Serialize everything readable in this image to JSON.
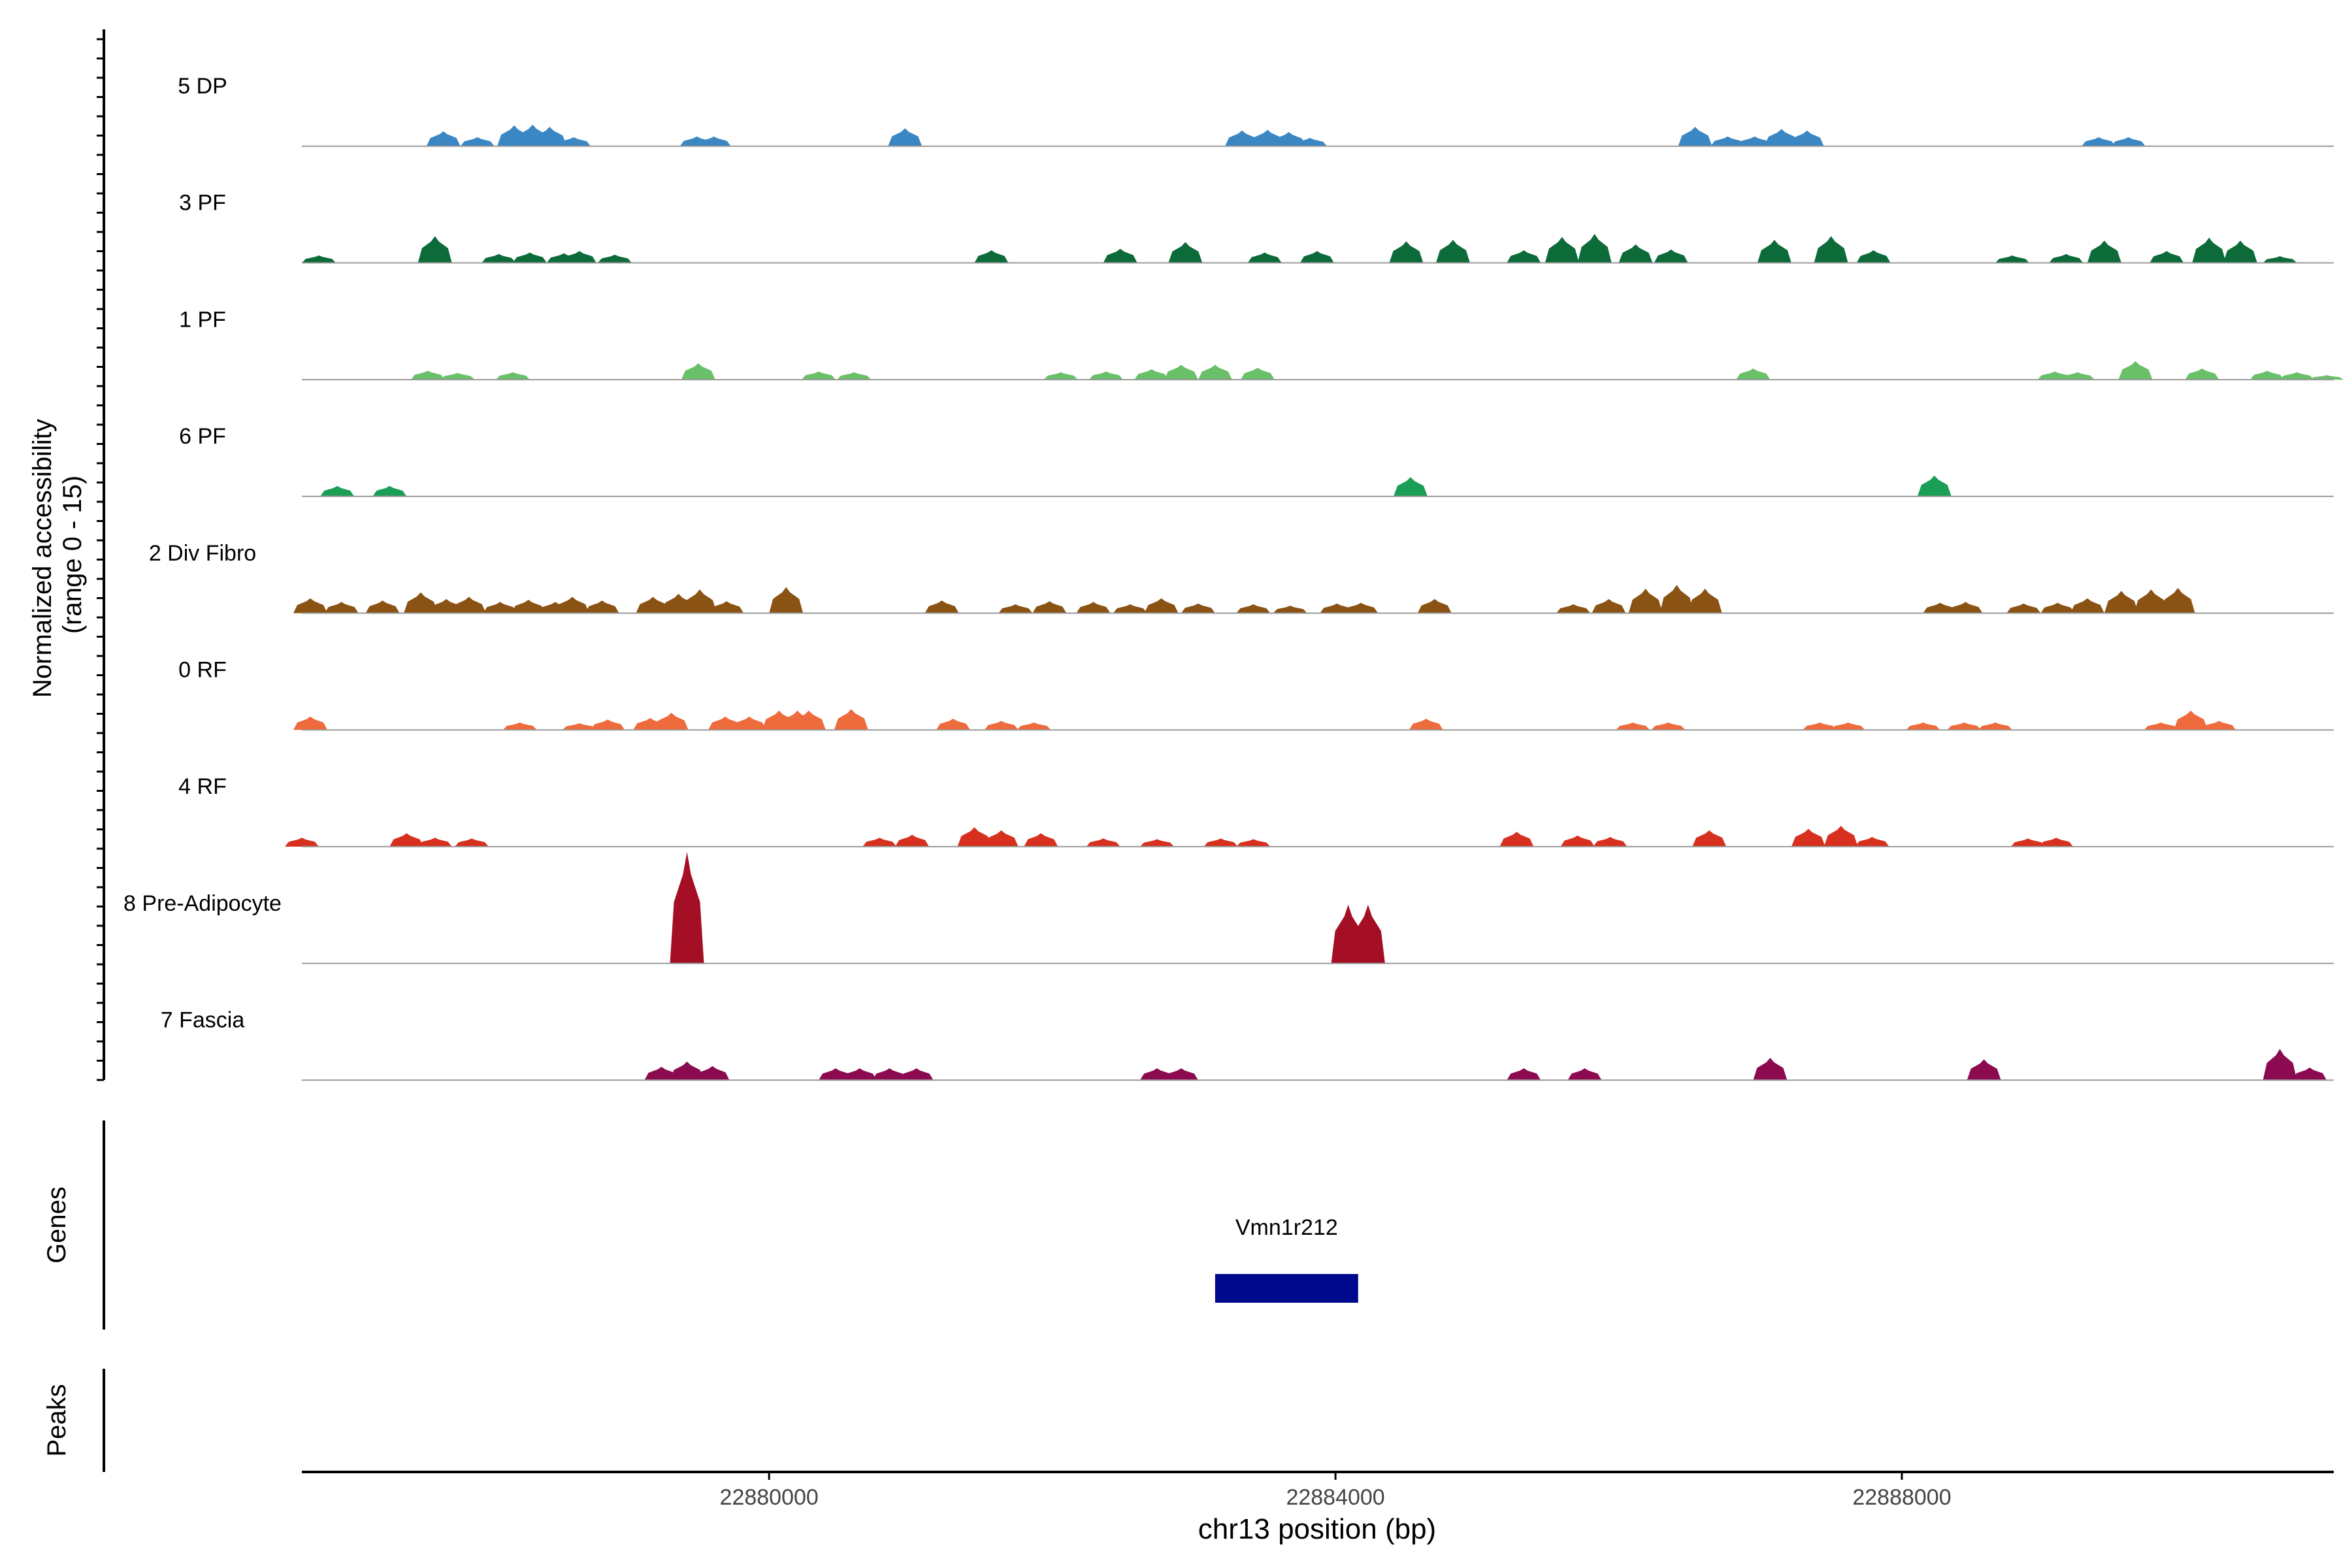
{
  "chart_data": {
    "type": "area",
    "xlabel": "chr13 position (bp)",
    "xlim": [
      22876700,
      22891050
    ],
    "xticks": [
      22880000,
      22884000,
      22888000
    ],
    "xtick_labels": [
      "22880000",
      "22884000",
      "22888000"
    ],
    "coverage_ylabel_line1": "Normalized accessibility",
    "coverage_ylabel_line2": "(range 0 - 15)",
    "ylim": [
      0,
      15
    ],
    "tracks": [
      {
        "name": "5 DP",
        "color": "#3a87c4",
        "peaks": [
          [
            22877700,
            2.0
          ],
          [
            22877940,
            1.2
          ],
          [
            22878200,
            2.8
          ],
          [
            22878330,
            2.9
          ],
          [
            22878450,
            2.6
          ],
          [
            22878620,
            1.2
          ],
          [
            22879490,
            1.3
          ],
          [
            22879610,
            1.3
          ],
          [
            22880960,
            2.4
          ],
          [
            22883340,
            2.1
          ],
          [
            22883520,
            2.2
          ],
          [
            22883670,
            1.9
          ],
          [
            22883820,
            1.1
          ],
          [
            22886540,
            2.6
          ],
          [
            22886770,
            1.3
          ],
          [
            22886960,
            1.3
          ],
          [
            22887150,
            2.3
          ],
          [
            22887330,
            2.1
          ],
          [
            22889390,
            1.2
          ],
          [
            22889600,
            1.2
          ]
        ]
      },
      {
        "name": "3 PF",
        "color": "#0d6b3a",
        "peaks": [
          [
            22876820,
            1.0
          ],
          [
            22877640,
            3.6
          ],
          [
            22878090,
            1.2
          ],
          [
            22878310,
            1.4
          ],
          [
            22878550,
            1.3
          ],
          [
            22878660,
            1.6
          ],
          [
            22878910,
            1.1
          ],
          [
            22881570,
            1.7
          ],
          [
            22882480,
            1.9
          ],
          [
            22882940,
            2.8
          ],
          [
            22883500,
            1.4
          ],
          [
            22883870,
            1.6
          ],
          [
            22884500,
            2.9
          ],
          [
            22884830,
            3.1
          ],
          [
            22885330,
            1.7
          ],
          [
            22885600,
            3.5
          ],
          [
            22885830,
            3.9
          ],
          [
            22886120,
            2.5
          ],
          [
            22886370,
            1.8
          ],
          [
            22887100,
            3.1
          ],
          [
            22887500,
            3.6
          ],
          [
            22887800,
            1.7
          ],
          [
            22888780,
            1.0
          ],
          [
            22889160,
            1.2
          ],
          [
            22889430,
            3.0
          ],
          [
            22889870,
            1.6
          ],
          [
            22890170,
            3.4
          ],
          [
            22890390,
            3.0
          ],
          [
            22890670,
            0.9
          ]
        ]
      },
      {
        "name": "1 PF",
        "color": "#6abf69",
        "peaks": [
          [
            22877590,
            1.2
          ],
          [
            22877800,
            0.9
          ],
          [
            22878190,
            1.0
          ],
          [
            22879500,
            2.2
          ],
          [
            22880350,
            1.1
          ],
          [
            22880600,
            1.0
          ],
          [
            22882060,
            1.0
          ],
          [
            22882380,
            1.1
          ],
          [
            22882700,
            1.4
          ],
          [
            22882910,
            2.0
          ],
          [
            22883150,
            2.0
          ],
          [
            22883450,
            1.6
          ],
          [
            22886950,
            1.5
          ],
          [
            22889080,
            1.1
          ],
          [
            22889240,
            1.0
          ],
          [
            22889650,
            2.5
          ],
          [
            22890120,
            1.5
          ],
          [
            22890580,
            1.2
          ],
          [
            22890790,
            1.0
          ],
          [
            22891000,
            0.6
          ]
        ]
      },
      {
        "name": "6 PF",
        "color": "#1b9e55",
        "peaks": [
          [
            22876950,
            1.4
          ],
          [
            22877320,
            1.4
          ],
          [
            22884530,
            2.6
          ],
          [
            22888230,
            2.8
          ]
        ]
      },
      {
        "name": "2 Div Fibro",
        "color": "#8a5213",
        "peaks": [
          [
            22876760,
            2.0
          ],
          [
            22876980,
            1.5
          ],
          [
            22877270,
            1.7
          ],
          [
            22877540,
            2.8
          ],
          [
            22877720,
            1.9
          ],
          [
            22877880,
            2.2
          ],
          [
            22878100,
            1.5
          ],
          [
            22878300,
            1.8
          ],
          [
            22878490,
            1.5
          ],
          [
            22878610,
            2.2
          ],
          [
            22878820,
            1.7
          ],
          [
            22879180,
            2.2
          ],
          [
            22879360,
            2.6
          ],
          [
            22879510,
            3.2
          ],
          [
            22879700,
            1.6
          ],
          [
            22880120,
            3.5
          ],
          [
            22881220,
            1.7
          ],
          [
            22881740,
            1.2
          ],
          [
            22881980,
            1.6
          ],
          [
            22882290,
            1.5
          ],
          [
            22882550,
            1.2
          ],
          [
            22882770,
            2.0
          ],
          [
            22883030,
            1.3
          ],
          [
            22883420,
            1.2
          ],
          [
            22883680,
            1.0
          ],
          [
            22884010,
            1.3
          ],
          [
            22884180,
            1.4
          ],
          [
            22884700,
            1.9
          ],
          [
            22885680,
            1.2
          ],
          [
            22885930,
            1.9
          ],
          [
            22886190,
            3.3
          ],
          [
            22886410,
            3.8
          ],
          [
            22886610,
            3.3
          ],
          [
            22888270,
            1.4
          ],
          [
            22888450,
            1.5
          ],
          [
            22888860,
            1.3
          ],
          [
            22889100,
            1.4
          ],
          [
            22889310,
            2.0
          ],
          [
            22889550,
            3.0
          ],
          [
            22889760,
            3.2
          ],
          [
            22889950,
            3.4
          ]
        ]
      },
      {
        "name": "0 RF",
        "color": "#ee6b3d",
        "peaks": [
          [
            22876760,
            1.8
          ],
          [
            22878240,
            1.0
          ],
          [
            22878660,
            0.9
          ],
          [
            22878860,
            1.4
          ],
          [
            22879160,
            1.6
          ],
          [
            22879310,
            2.3
          ],
          [
            22879690,
            1.8
          ],
          [
            22879860,
            1.8
          ],
          [
            22880070,
            2.6
          ],
          [
            22880200,
            2.6
          ],
          [
            22880280,
            2.6
          ],
          [
            22880580,
            2.8
          ],
          [
            22881300,
            1.5
          ],
          [
            22881640,
            1.2
          ],
          [
            22881870,
            1.0
          ],
          [
            22884640,
            1.5
          ],
          [
            22886100,
            1.0
          ],
          [
            22886350,
            1.0
          ],
          [
            22887420,
            1.0
          ],
          [
            22887620,
            1.0
          ],
          [
            22888150,
            1.0
          ],
          [
            22888440,
            1.0
          ],
          [
            22888660,
            1.0
          ],
          [
            22889830,
            1.0
          ],
          [
            22890040,
            2.6
          ],
          [
            22890240,
            1.2
          ]
        ]
      },
      {
        "name": "4 RF",
        "color": "#d7301f",
        "peaks": [
          [
            22876700,
            1.2
          ],
          [
            22877440,
            1.8
          ],
          [
            22877640,
            1.2
          ],
          [
            22877900,
            1.1
          ],
          [
            22880780,
            1.2
          ],
          [
            22881010,
            1.6
          ],
          [
            22881450,
            2.6
          ],
          [
            22881640,
            2.2
          ],
          [
            22881920,
            1.8
          ],
          [
            22882360,
            1.1
          ],
          [
            22882740,
            1.0
          ],
          [
            22883190,
            1.1
          ],
          [
            22883420,
            1.0
          ],
          [
            22885280,
            2.0
          ],
          [
            22885710,
            1.5
          ],
          [
            22885940,
            1.3
          ],
          [
            22886640,
            2.2
          ],
          [
            22887340,
            2.4
          ],
          [
            22887570,
            2.8
          ],
          [
            22887790,
            1.3
          ],
          [
            22888890,
            1.1
          ],
          [
            22889090,
            1.2
          ]
        ]
      },
      {
        "name": "8 Pre-Adipocyte",
        "color": "#a50f26",
        "peaks": [
          [
            22879420,
            15.0
          ],
          [
            22884090,
            7.9
          ],
          [
            22884230,
            7.9
          ]
        ]
      },
      {
        "name": "7 Fascia",
        "color": "#8b0a50",
        "peaks": [
          [
            22879240,
            1.8
          ],
          [
            22879420,
            2.5
          ],
          [
            22879600,
            1.9
          ],
          [
            22880470,
            1.6
          ],
          [
            22880640,
            1.6
          ],
          [
            22880850,
            1.6
          ],
          [
            22881040,
            1.6
          ],
          [
            22882740,
            1.6
          ],
          [
            22882910,
            1.6
          ],
          [
            22885330,
            1.6
          ],
          [
            22885760,
            1.6
          ],
          [
            22887070,
            3.0
          ],
          [
            22888580,
            2.8
          ],
          [
            22890670,
            4.2
          ],
          [
            22890880,
            1.7
          ]
        ]
      }
    ],
    "genes_ylabel": "Genes",
    "genes": [
      {
        "name": "Vmn1r212",
        "start": 22883150,
        "end": 22884160,
        "color": "#000a8c"
      }
    ],
    "peaks_ylabel": "Peaks"
  }
}
